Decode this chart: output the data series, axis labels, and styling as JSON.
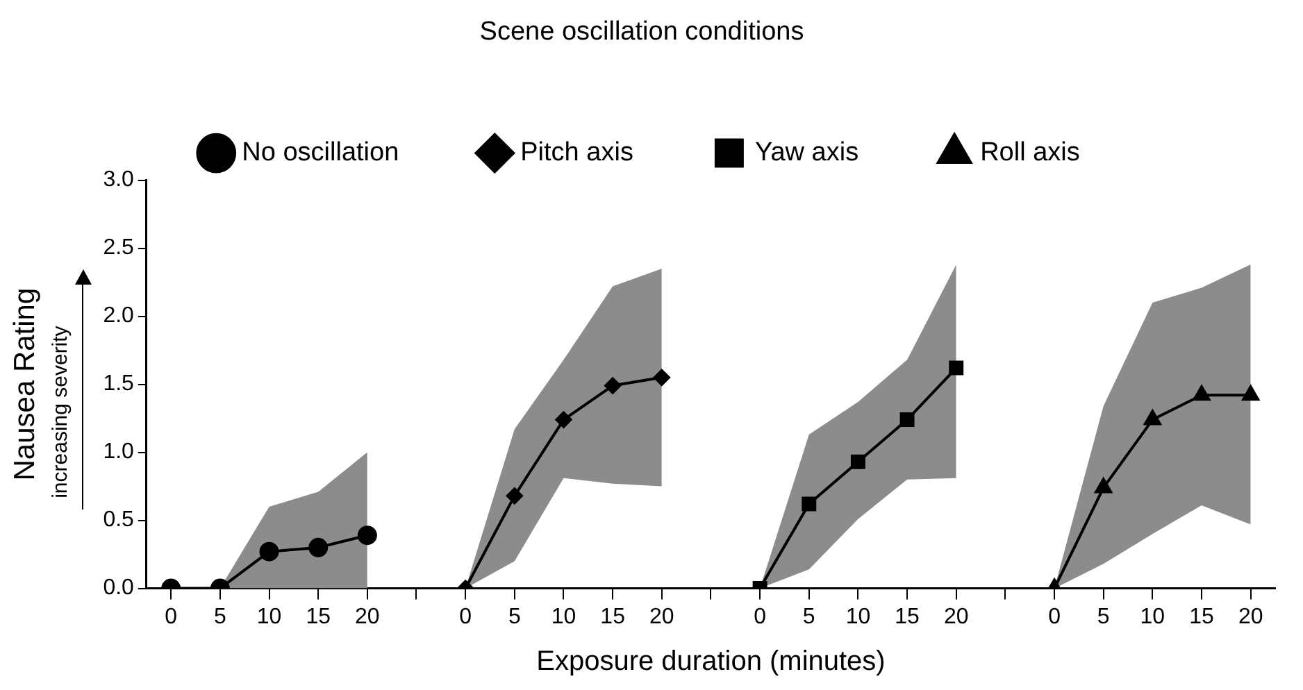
{
  "chart_data": {
    "type": "line",
    "legend_title": "Scene oscillation conditions",
    "xlabel": "Exposure duration (minutes)",
    "ylabel": "Nausea Rating",
    "annotations": [
      "increasing severity"
    ],
    "categories": [
      "0",
      "5",
      "10",
      "15",
      "20",
      null,
      "0",
      "5",
      "10",
      "15",
      "20",
      null,
      "0",
      "5",
      "10",
      "15",
      "20",
      null,
      "0",
      "5",
      "10",
      "15",
      "20"
    ],
    "ylim": [
      0,
      3
    ],
    "yticks": [
      {
        "value": 0,
        "label": "0.0"
      },
      {
        "value": 0.5,
        "label": "0.5"
      },
      {
        "value": 1,
        "label": "1.0"
      },
      {
        "value": 1.5,
        "label": "1.5"
      },
      {
        "value": 2,
        "label": "2.0"
      },
      {
        "value": 2.5,
        "label": "2.5"
      },
      {
        "value": 3,
        "label": "3.0"
      }
    ],
    "legend": "top",
    "grid": false,
    "series": [
      {
        "name": "No oscillation",
        "color": "#000000",
        "marker": "circle",
        "values": [
          0,
          0,
          0.27,
          0.3,
          0.39,
          null,
          null,
          null,
          null,
          null,
          null,
          null,
          null,
          null,
          null,
          null,
          null,
          null,
          null,
          null,
          null,
          null,
          null
        ],
        "lower": [
          null,
          0,
          0,
          0,
          0,
          null,
          null,
          null,
          null,
          null,
          null,
          null,
          null,
          null,
          null,
          null,
          null,
          null,
          null,
          null,
          null,
          null,
          null
        ],
        "upper": [
          null,
          0,
          0.6,
          0.71,
          1.0,
          null,
          null,
          null,
          null,
          null,
          null,
          null,
          null,
          null,
          null,
          null,
          null,
          null,
          null,
          null,
          null,
          null,
          null
        ]
      },
      {
        "name": "Pitch axis",
        "color": "#000000",
        "marker": "diamond",
        "values": [
          null,
          null,
          null,
          null,
          null,
          null,
          0,
          0.68,
          1.24,
          1.49,
          1.55,
          null,
          null,
          null,
          null,
          null,
          null,
          null,
          null,
          null,
          null,
          null,
          null
        ],
        "lower": [
          null,
          null,
          null,
          null,
          null,
          null,
          0,
          0.2,
          0.81,
          0.77,
          0.75,
          null,
          null,
          null,
          null,
          null,
          null,
          null,
          null,
          null,
          null,
          null,
          null
        ],
        "upper": [
          null,
          null,
          null,
          null,
          null,
          null,
          0,
          1.17,
          1.68,
          2.22,
          2.35,
          null,
          null,
          null,
          null,
          null,
          null,
          null,
          null,
          null,
          null,
          null,
          null
        ]
      },
      {
        "name": "Yaw axis",
        "color": "#000000",
        "marker": "square",
        "values": [
          null,
          null,
          null,
          null,
          null,
          null,
          null,
          null,
          null,
          null,
          null,
          null,
          0,
          0.62,
          0.93,
          1.24,
          1.62,
          null,
          null,
          null,
          null,
          null,
          null
        ],
        "lower": [
          null,
          null,
          null,
          null,
          null,
          null,
          null,
          null,
          null,
          null,
          null,
          null,
          0,
          0.14,
          0.51,
          0.8,
          0.81,
          null,
          null,
          null,
          null,
          null,
          null
        ],
        "upper": [
          null,
          null,
          null,
          null,
          null,
          null,
          null,
          null,
          null,
          null,
          null,
          null,
          0,
          1.13,
          1.37,
          1.68,
          2.38,
          null,
          null,
          null,
          null,
          null,
          null
        ]
      },
      {
        "name": "Roll axis",
        "color": "#000000",
        "marker": "triangle",
        "values": [
          null,
          null,
          null,
          null,
          null,
          null,
          null,
          null,
          null,
          null,
          null,
          null,
          null,
          null,
          null,
          null,
          null,
          null,
          0,
          0.74,
          1.24,
          1.42,
          1.42
        ],
        "lower": [
          null,
          null,
          null,
          null,
          null,
          null,
          null,
          null,
          null,
          null,
          null,
          null,
          null,
          null,
          null,
          null,
          null,
          null,
          0,
          0.18,
          0.4,
          0.61,
          0.47
        ],
        "upper": [
          null,
          null,
          null,
          null,
          null,
          null,
          null,
          null,
          null,
          null,
          null,
          null,
          null,
          null,
          null,
          null,
          null,
          null,
          0,
          1.34,
          2.1,
          2.21,
          2.38
        ]
      }
    ]
  }
}
